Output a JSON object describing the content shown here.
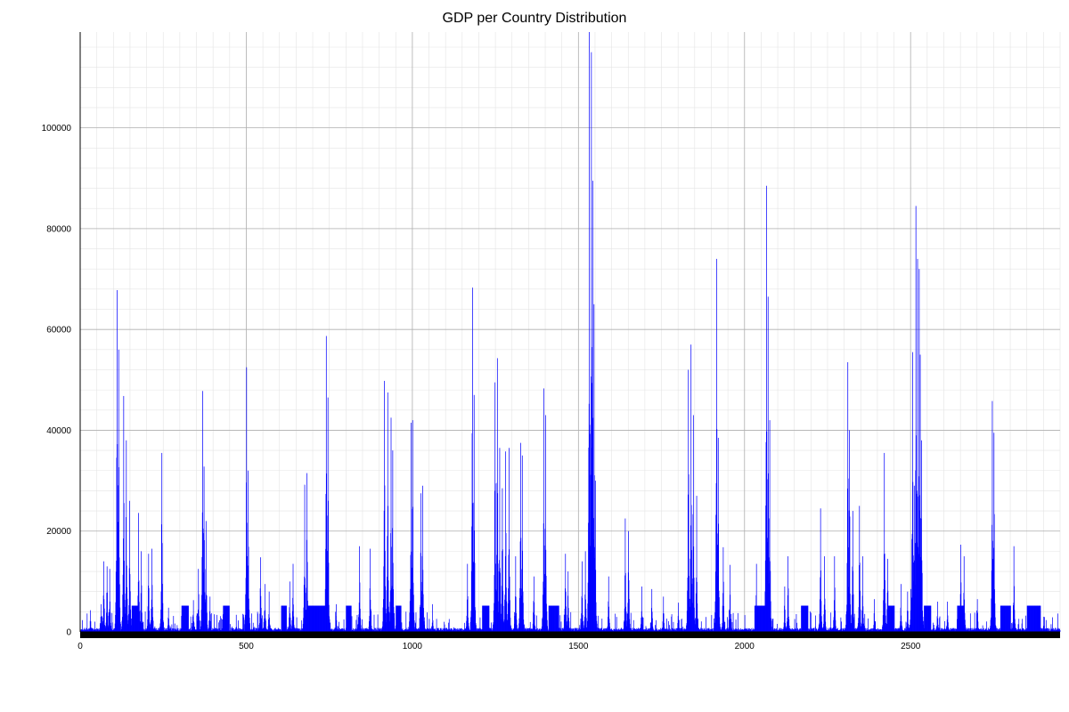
{
  "chart_data": {
    "type": "bar",
    "title": "GDP per Country Distribution",
    "xlabel": "",
    "ylabel": "",
    "xlim": [
      0,
      2950
    ],
    "ylim": [
      0,
      119000
    ],
    "x_ticks": [
      0,
      500,
      1000,
      1500,
      2000,
      2500
    ],
    "y_ticks": [
      0,
      20000,
      40000,
      60000,
      80000,
      100000
    ],
    "grid": true,
    "bar_color": "#0000ff",
    "baseline": 500,
    "plateau_value": 5200,
    "plateaus": [
      [
        155,
        172
      ],
      [
        305,
        325
      ],
      [
        430,
        448
      ],
      [
        605,
        620
      ],
      [
        680,
        700
      ],
      [
        690,
        745
      ],
      [
        800,
        815
      ],
      [
        950,
        965
      ],
      [
        1210,
        1230
      ],
      [
        1410,
        1440
      ],
      [
        2030,
        2060
      ],
      [
        2170,
        2190
      ],
      [
        2430,
        2450
      ],
      [
        2540,
        2560
      ],
      [
        2640,
        2660
      ],
      [
        2770,
        2800
      ],
      [
        2850,
        2890
      ]
    ],
    "peaks": [
      {
        "x": 110,
        "value": 67800
      },
      {
        "x": 115,
        "value": 56000
      },
      {
        "x": 130,
        "value": 46800
      },
      {
        "x": 138,
        "value": 38000
      },
      {
        "x": 148,
        "value": 26000
      },
      {
        "x": 70,
        "value": 14000
      },
      {
        "x": 80,
        "value": 13000
      },
      {
        "x": 88,
        "value": 12500
      },
      {
        "x": 62,
        "value": 5500
      },
      {
        "x": 30,
        "value": 4300
      },
      {
        "x": 175,
        "value": 23600
      },
      {
        "x": 183,
        "value": 16000
      },
      {
        "x": 205,
        "value": 15500
      },
      {
        "x": 215,
        "value": 16500
      },
      {
        "x": 245,
        "value": 35500
      },
      {
        "x": 265,
        "value": 4800
      },
      {
        "x": 340,
        "value": 6300
      },
      {
        "x": 355,
        "value": 12500
      },
      {
        "x": 368,
        "value": 47800
      },
      {
        "x": 372,
        "value": 32800
      },
      {
        "x": 378,
        "value": 22000
      },
      {
        "x": 390,
        "value": 7000
      },
      {
        "x": 500,
        "value": 52500
      },
      {
        "x": 505,
        "value": 32000
      },
      {
        "x": 542,
        "value": 14800
      },
      {
        "x": 555,
        "value": 9500
      },
      {
        "x": 568,
        "value": 8000
      },
      {
        "x": 630,
        "value": 10000
      },
      {
        "x": 640,
        "value": 13500
      },
      {
        "x": 675,
        "value": 29200
      },
      {
        "x": 682,
        "value": 31500
      },
      {
        "x": 740,
        "value": 58700
      },
      {
        "x": 745,
        "value": 46500
      },
      {
        "x": 770,
        "value": 5500
      },
      {
        "x": 840,
        "value": 17000
      },
      {
        "x": 872,
        "value": 16500
      },
      {
        "x": 915,
        "value": 49800
      },
      {
        "x": 925,
        "value": 47500
      },
      {
        "x": 935,
        "value": 42500
      },
      {
        "x": 940,
        "value": 36000
      },
      {
        "x": 995,
        "value": 41500
      },
      {
        "x": 1000,
        "value": 42000
      },
      {
        "x": 1025,
        "value": 27500
      },
      {
        "x": 1030,
        "value": 29000
      },
      {
        "x": 1060,
        "value": 5500
      },
      {
        "x": 1165,
        "value": 13500
      },
      {
        "x": 1180,
        "value": 68300
      },
      {
        "x": 1185,
        "value": 47000
      },
      {
        "x": 1248,
        "value": 49500
      },
      {
        "x": 1255,
        "value": 54300
      },
      {
        "x": 1262,
        "value": 36500
      },
      {
        "x": 1270,
        "value": 28500
      },
      {
        "x": 1280,
        "value": 35800
      },
      {
        "x": 1290,
        "value": 36500
      },
      {
        "x": 1310,
        "value": 15000
      },
      {
        "x": 1325,
        "value": 37500
      },
      {
        "x": 1330,
        "value": 35000
      },
      {
        "x": 1365,
        "value": 11000
      },
      {
        "x": 1395,
        "value": 48300
      },
      {
        "x": 1400,
        "value": 43000
      },
      {
        "x": 1460,
        "value": 15500
      },
      {
        "x": 1468,
        "value": 12000
      },
      {
        "x": 1510,
        "value": 14000
      },
      {
        "x": 1520,
        "value": 16000
      },
      {
        "x": 1532,
        "value": 119000
      },
      {
        "x": 1538,
        "value": 115000
      },
      {
        "x": 1542,
        "value": 89500
      },
      {
        "x": 1546,
        "value": 65000
      },
      {
        "x": 1550,
        "value": 30000
      },
      {
        "x": 1590,
        "value": 11000
      },
      {
        "x": 1640,
        "value": 22500
      },
      {
        "x": 1650,
        "value": 20000
      },
      {
        "x": 1690,
        "value": 9000
      },
      {
        "x": 1720,
        "value": 8500
      },
      {
        "x": 1755,
        "value": 7000
      },
      {
        "x": 1800,
        "value": 5800
      },
      {
        "x": 1830,
        "value": 52000
      },
      {
        "x": 1838,
        "value": 57000
      },
      {
        "x": 1845,
        "value": 43000
      },
      {
        "x": 1855,
        "value": 27000
      },
      {
        "x": 1915,
        "value": 74000
      },
      {
        "x": 1920,
        "value": 38500
      },
      {
        "x": 1935,
        "value": 16800
      },
      {
        "x": 1955,
        "value": 13300
      },
      {
        "x": 2035,
        "value": 13500
      },
      {
        "x": 2065,
        "value": 88500
      },
      {
        "x": 2070,
        "value": 66500
      },
      {
        "x": 2075,
        "value": 42000
      },
      {
        "x": 2120,
        "value": 9000
      },
      {
        "x": 2130,
        "value": 15000
      },
      {
        "x": 2228,
        "value": 24500
      },
      {
        "x": 2240,
        "value": 15000
      },
      {
        "x": 2270,
        "value": 15000
      },
      {
        "x": 2310,
        "value": 53500
      },
      {
        "x": 2315,
        "value": 40000
      },
      {
        "x": 2325,
        "value": 24000
      },
      {
        "x": 2345,
        "value": 25000
      },
      {
        "x": 2355,
        "value": 15000
      },
      {
        "x": 2390,
        "value": 6500
      },
      {
        "x": 2420,
        "value": 35500
      },
      {
        "x": 2430,
        "value": 14500
      },
      {
        "x": 2470,
        "value": 9500
      },
      {
        "x": 2490,
        "value": 8000
      },
      {
        "x": 2500,
        "value": 8500
      },
      {
        "x": 2505,
        "value": 55500
      },
      {
        "x": 2510,
        "value": 29000
      },
      {
        "x": 2515,
        "value": 84500
      },
      {
        "x": 2520,
        "value": 74000
      },
      {
        "x": 2525,
        "value": 72000
      },
      {
        "x": 2528,
        "value": 55000
      },
      {
        "x": 2532,
        "value": 38000
      },
      {
        "x": 2580,
        "value": 6000
      },
      {
        "x": 2610,
        "value": 6000
      },
      {
        "x": 2650,
        "value": 17300
      },
      {
        "x": 2660,
        "value": 15000
      },
      {
        "x": 2700,
        "value": 6500
      },
      {
        "x": 2745,
        "value": 45800
      },
      {
        "x": 2750,
        "value": 39500
      },
      {
        "x": 2810,
        "value": 17000
      },
      {
        "x": 2900,
        "value": 3000
      }
    ]
  }
}
